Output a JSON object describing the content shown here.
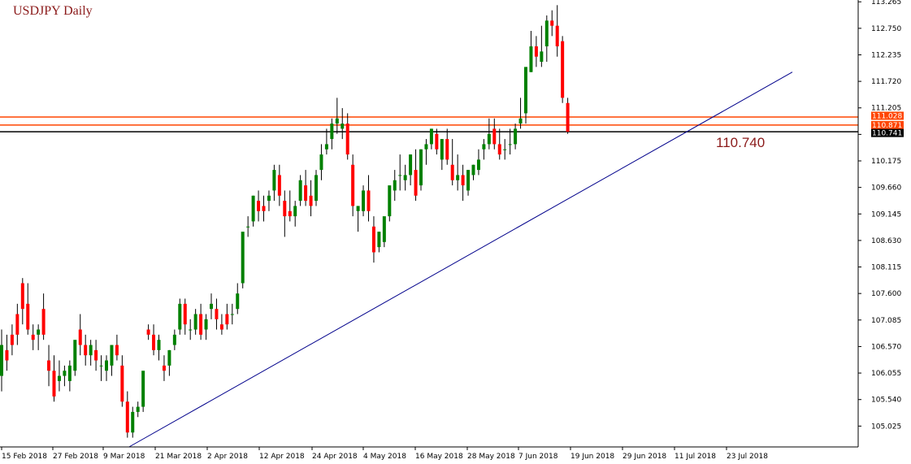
{
  "chart_data": {
    "type": "candlestick",
    "title": "USDJPY Daily",
    "price_axis": {
      "range": [
        104.62,
        113.3
      ],
      "ticks": [
        "113.265",
        "112.750",
        "112.235",
        "111.720",
        "111.205",
        "110.690",
        "110.175",
        "109.660",
        "109.145",
        "108.630",
        "108.115",
        "107.600",
        "107.085",
        "106.570",
        "106.055",
        "105.540",
        "105.025"
      ]
    },
    "date_axis": {
      "labels": [
        "15 Feb 2018",
        "27 Feb 2018",
        "9 Mar 2018",
        "21 Mar 2018",
        "2 Apr 2018",
        "12 Apr 2018",
        "24 Apr 2018",
        "4 May 2018",
        "16 May 2018",
        "28 May 2018",
        "7 Jun 2018",
        "19 Jun 2018",
        "29 Jun 2018",
        "11 Jul 2018",
        "23 Jul 2018"
      ]
    },
    "horizontal_levels": [
      {
        "value": 111.028,
        "label": "111.028",
        "color": "#ff4500"
      },
      {
        "value": 110.871,
        "label": "110.871",
        "color": "#ff4500"
      },
      {
        "value": 110.741,
        "label": "110.741",
        "color": "#000000"
      }
    ],
    "annotation": "110.740",
    "trendline": {
      "start": [
        "21 Mar 2018",
        104.62
      ],
      "end": [
        "27 Jul 2018",
        111.9
      ],
      "color": "#00008b"
    },
    "colors": {
      "bull": "#008000",
      "bear": "#ff0000",
      "wick": "#000000"
    },
    "candles": [
      [
        106.0,
        106.9,
        106.6,
        105.7
      ],
      [
        106.5,
        106.8,
        106.3,
        106.1
      ],
      [
        106.8,
        107.0,
        106.6,
        106.4
      ],
      [
        107.2,
        107.4,
        106.8,
        106.6
      ],
      [
        107.8,
        107.9,
        107.3,
        107.0
      ],
      [
        107.4,
        107.8,
        106.9,
        106.8
      ],
      [
        106.8,
        107.0,
        106.7,
        106.5
      ],
      [
        106.8,
        107.0,
        106.9,
        106.5
      ],
      [
        107.3,
        107.6,
        106.8,
        106.7
      ],
      [
        106.3,
        106.6,
        106.1,
        105.8
      ],
      [
        106.1,
        106.4,
        105.6,
        105.5
      ],
      [
        105.9,
        106.3,
        106.0,
        105.7
      ],
      [
        106.0,
        106.2,
        106.1,
        105.8
      ],
      [
        105.9,
        106.3,
        106.2,
        105.7
      ],
      [
        106.1,
        106.5,
        106.7,
        106.0
      ],
      [
        106.9,
        107.2,
        106.6,
        106.4
      ],
      [
        106.6,
        106.8,
        106.4,
        106.2
      ],
      [
        106.4,
        106.7,
        106.6,
        106.2
      ],
      [
        106.5,
        106.7,
        106.3,
        106.1
      ],
      [
        106.2,
        106.4,
        106.2,
        105.9
      ],
      [
        106.1,
        106.4,
        106.3,
        105.9
      ],
      [
        106.2,
        106.5,
        106.6,
        106.0
      ],
      [
        106.6,
        106.8,
        106.4,
        106.3
      ],
      [
        106.2,
        106.4,
        105.5,
        105.4
      ],
      [
        105.5,
        105.7,
        104.9,
        104.8
      ],
      [
        104.9,
        105.4,
        105.3,
        104.8
      ],
      [
        105.3,
        105.5,
        105.4,
        105.2
      ],
      [
        105.4,
        105.6,
        106.1,
        105.3
      ],
      [
        106.9,
        107.0,
        106.8,
        106.7
      ],
      [
        106.8,
        107.0,
        106.5,
        106.4
      ],
      [
        106.5,
        106.8,
        106.7,
        106.3
      ],
      [
        106.2,
        106.4,
        106.1,
        105.9
      ],
      [
        106.2,
        106.5,
        106.5,
        106.0
      ],
      [
        106.6,
        106.9,
        106.8,
        106.5
      ],
      [
        106.9,
        107.5,
        107.4,
        106.8
      ],
      [
        107.4,
        107.5,
        107.0,
        106.8
      ],
      [
        106.9,
        107.1,
        106.9,
        106.7
      ],
      [
        106.9,
        107.3,
        107.2,
        106.8
      ],
      [
        107.2,
        107.4,
        106.8,
        106.7
      ],
      [
        106.9,
        107.2,
        107.1,
        106.7
      ],
      [
        107.3,
        107.6,
        107.4,
        107.1
      ],
      [
        107.3,
        107.5,
        107.1,
        106.9
      ],
      [
        107.0,
        107.2,
        106.9,
        106.8
      ],
      [
        107.2,
        107.4,
        107.0,
        106.9
      ],
      [
        107.2,
        107.4,
        107.2,
        107.0
      ],
      [
        107.3,
        107.8,
        107.6,
        107.2
      ],
      [
        107.8,
        108.0,
        108.8,
        107.7
      ],
      [
        108.9,
        109.1,
        108.9,
        108.7
      ],
      [
        109.0,
        109.5,
        109.5,
        108.9
      ],
      [
        109.4,
        109.6,
        109.2,
        109.0
      ],
      [
        109.3,
        109.5,
        109.2,
        109.0
      ],
      [
        109.4,
        109.6,
        109.5,
        109.2
      ],
      [
        109.6,
        110.1,
        110.0,
        109.4
      ],
      [
        109.9,
        110.1,
        109.5,
        109.3
      ],
      [
        109.4,
        109.6,
        109.1,
        108.7
      ],
      [
        109.2,
        109.6,
        109.1,
        109.0
      ],
      [
        109.1,
        109.4,
        109.3,
        108.9
      ],
      [
        109.4,
        109.9,
        109.8,
        109.3
      ],
      [
        109.7,
        110.0,
        109.4,
        109.3
      ],
      [
        109.5,
        109.8,
        109.3,
        109.1
      ],
      [
        109.4,
        110.0,
        109.9,
        109.3
      ],
      [
        110.0,
        110.5,
        110.3,
        109.8
      ],
      [
        110.4,
        110.8,
        110.5,
        110.3
      ],
      [
        110.6,
        111.0,
        110.9,
        110.4
      ],
      [
        110.9,
        111.4,
        111.0,
        110.7
      ],
      [
        110.8,
        111.2,
        110.9,
        110.6
      ],
      [
        110.9,
        111.1,
        110.3,
        110.2
      ],
      [
        110.1,
        110.3,
        109.3,
        109.1
      ],
      [
        109.2,
        109.3,
        109.3,
        108.8
      ],
      [
        109.2,
        109.7,
        109.6,
        109.1
      ],
      [
        109.6,
        109.9,
        109.2,
        109.0
      ],
      [
        108.9,
        109.1,
        108.4,
        108.2
      ],
      [
        108.5,
        108.8,
        108.8,
        108.4
      ],
      [
        108.6,
        109.0,
        109.1,
        108.5
      ],
      [
        109.1,
        109.6,
        109.7,
        109.0
      ],
      [
        109.6,
        110.0,
        109.8,
        109.4
      ],
      [
        109.9,
        110.3,
        109.9,
        109.6
      ],
      [
        109.8,
        110.1,
        109.9,
        109.6
      ],
      [
        109.9,
        110.3,
        110.3,
        109.7
      ],
      [
        110.0,
        110.4,
        109.5,
        109.4
      ],
      [
        109.7,
        110.4,
        110.4,
        109.6
      ],
      [
        110.4,
        110.6,
        110.5,
        110.1
      ],
      [
        110.5,
        110.8,
        110.8,
        110.4
      ],
      [
        110.7,
        110.8,
        110.4,
        110.3
      ],
      [
        110.2,
        110.6,
        110.6,
        110.0
      ],
      [
        110.6,
        110.8,
        110.2,
        110.1
      ],
      [
        110.1,
        110.6,
        109.8,
        109.7
      ],
      [
        109.8,
        110.3,
        109.9,
        109.6
      ],
      [
        109.9,
        110.1,
        109.7,
        109.4
      ],
      [
        109.6,
        110.0,
        110.0,
        109.5
      ],
      [
        109.9,
        110.1,
        110.1,
        109.8
      ],
      [
        110.0,
        110.4,
        110.2,
        109.9
      ],
      [
        110.4,
        110.6,
        110.5,
        110.2
      ],
      [
        110.5,
        111.0,
        110.7,
        110.4
      ],
      [
        110.8,
        111.0,
        110.5,
        110.4
      ],
      [
        110.5,
        110.8,
        110.3,
        110.2
      ],
      [
        110.4,
        110.6,
        110.4,
        110.2
      ],
      [
        110.5,
        110.8,
        110.5,
        110.3
      ],
      [
        110.5,
        110.9,
        110.8,
        110.4
      ],
      [
        110.9,
        111.4,
        111.0,
        110.8
      ],
      [
        111.1,
        111.3,
        112.0,
        110.9
      ],
      [
        111.9,
        112.7,
        112.4,
        111.9
      ],
      [
        112.4,
        112.6,
        112.2,
        112.0
      ],
      [
        112.1,
        112.8,
        112.3,
        112.0
      ],
      [
        112.4,
        113.0,
        112.9,
        112.1
      ],
      [
        112.9,
        113.1,
        112.8,
        112.6
      ],
      [
        112.8,
        113.2,
        112.4,
        112.2
      ],
      [
        112.5,
        112.6,
        111.4,
        111.3
      ],
      [
        111.3,
        111.4,
        110.74,
        110.7
      ]
    ]
  }
}
